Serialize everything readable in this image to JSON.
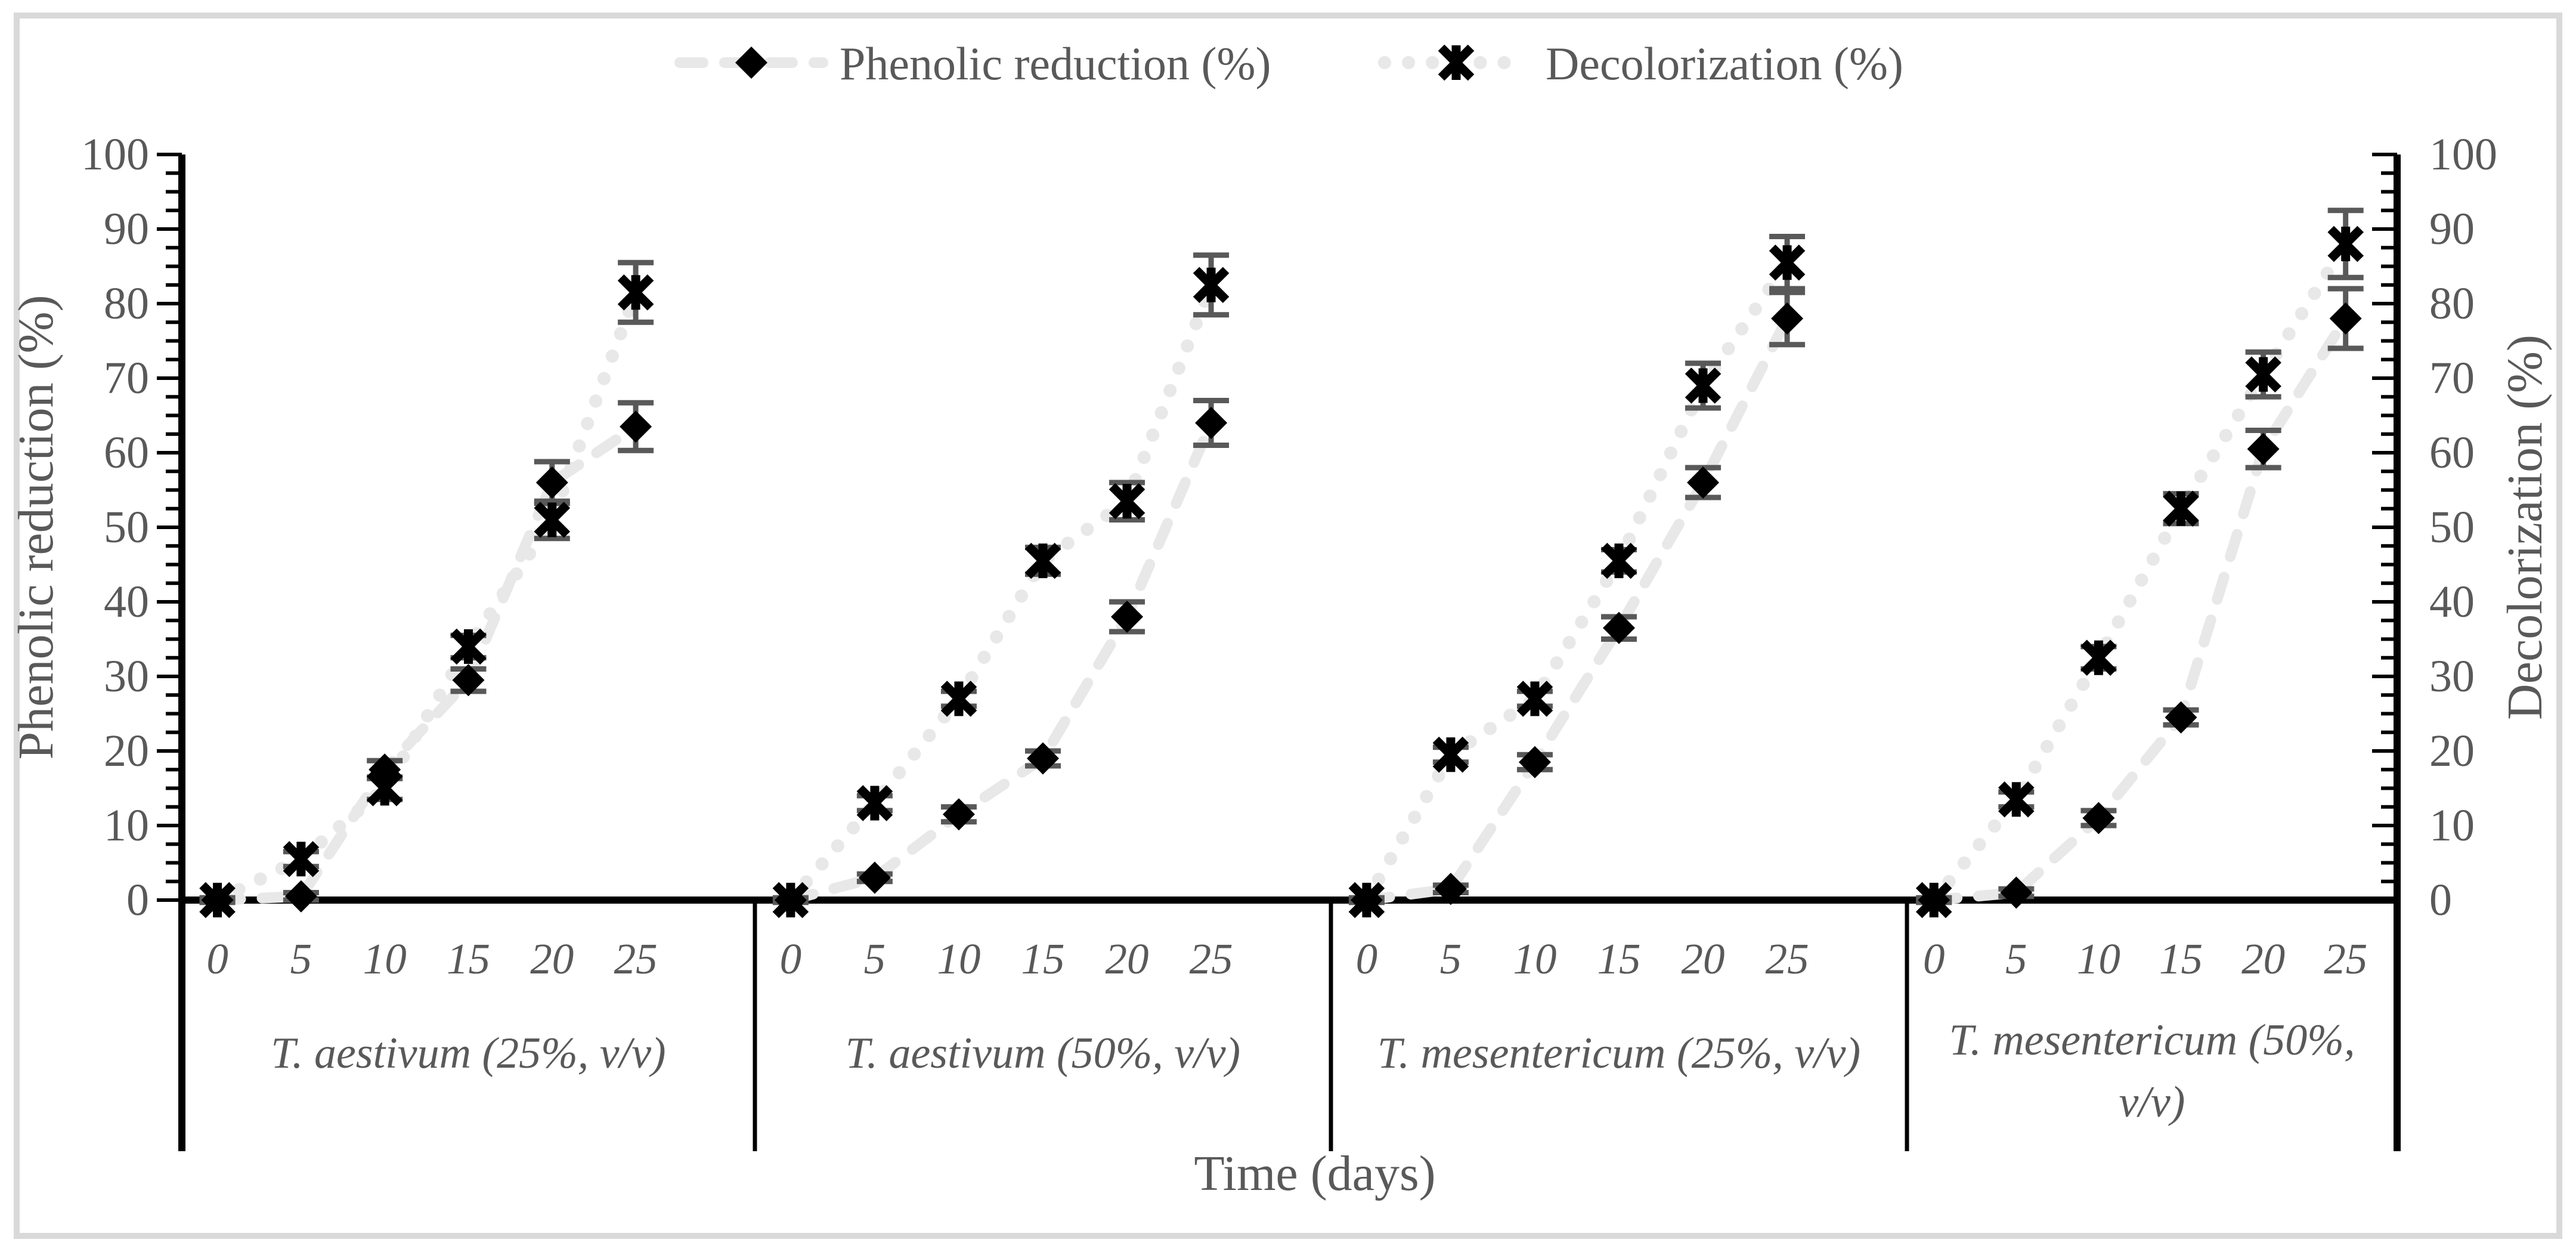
{
  "figure": {
    "background": "#ffffff",
    "border_color": "#d9d9d9"
  },
  "chart_data": {
    "type": "line",
    "x": [
      0,
      5,
      10,
      15,
      20,
      25
    ],
    "xlabel": "Time (days)",
    "ylabel_left": "Phenolic reduction (%)",
    "ylabel_right": "Decolorization (%)",
    "ylim": [
      0,
      100
    ],
    "yticks": [
      0,
      10,
      20,
      30,
      40,
      50,
      60,
      70,
      80,
      90,
      100
    ],
    "minor_tick_step": 2.5,
    "grid": false,
    "legend_position": "top-center",
    "legend": [
      {
        "label": "Phenolic reduction (%)",
        "marker": "diamond",
        "line_style": "dashed",
        "line_color": "#e8e8e8",
        "marker_color": "#000000"
      },
      {
        "label": "Decolorization (%)",
        "marker": "star",
        "line_style": "dotted",
        "line_color": "#e8e8e8",
        "marker_color": "#000000"
      }
    ],
    "colors": {
      "text": "#595959",
      "axis": "#000000",
      "error_bar": "#595959",
      "line": "#e8e8e8",
      "marker": "#000000"
    },
    "panels": [
      {
        "label": "T. aestivum (25%, v/v)",
        "label_lines": [
          "T. aestivum (25%, v/v)"
        ],
        "series": [
          {
            "name": "Phenolic reduction (%)",
            "values": [
              0,
              0.5,
              17.5,
              29.5,
              56,
              63.5
            ],
            "errors": [
              0.3,
              0.5,
              1.2,
              1.5,
              2.8,
              3.2
            ]
          },
          {
            "name": "Decolorization (%)",
            "values": [
              0,
              5.5,
              15,
              34,
              51,
              81.5
            ],
            "errors": [
              0.3,
              1,
              1.5,
              1.5,
              2.5,
              4
            ]
          }
        ]
      },
      {
        "label": "T. aestivum (50%, v/v)",
        "label_lines": [
          "T. aestivum (50%, v/v)"
        ],
        "series": [
          {
            "name": "Phenolic reduction (%)",
            "values": [
              0,
              3,
              11.5,
              19,
              38,
              64
            ],
            "errors": [
              0.3,
              0.5,
              1,
              1,
              2,
              3
            ]
          },
          {
            "name": "Decolorization (%)",
            "values": [
              0,
              13,
              27,
              45.5,
              53.5,
              82.5
            ],
            "errors": [
              0.3,
              1,
              1,
              1.8,
              2.5,
              4
            ]
          }
        ]
      },
      {
        "label": "T. mesentericum (25%, v/v)",
        "label_lines": [
          "T. mesentericum (25%, v/v)"
        ],
        "series": [
          {
            "name": "Phenolic reduction (%)",
            "values": [
              0,
              1.5,
              18.5,
              36.5,
              56,
              78
            ],
            "errors": [
              0.3,
              0.5,
              1,
              1.5,
              2,
              3.5
            ]
          },
          {
            "name": "Decolorization (%)",
            "values": [
              0,
              19.5,
              27,
              45.5,
              69,
              85.5
            ],
            "errors": [
              0.3,
              1,
              1,
              1.5,
              3,
              3.5
            ]
          }
        ]
      },
      {
        "label": "T. mesentericum (50%, v/v)",
        "label_lines": [
          "T. mesentericum (50%,",
          "v/v)"
        ],
        "series": [
          {
            "name": "Phenolic reduction (%)",
            "values": [
              0,
              1,
              11,
              24.5,
              60.5,
              78
            ],
            "errors": [
              0.3,
              0.5,
              1,
              1,
              2.5,
              4
            ]
          },
          {
            "name": "Decolorization (%)",
            "values": [
              0,
              13.5,
              32.5,
              52.5,
              70.5,
              88
            ],
            "errors": [
              0.3,
              1,
              1.5,
              2,
              3,
              4.5
            ]
          }
        ]
      }
    ]
  }
}
